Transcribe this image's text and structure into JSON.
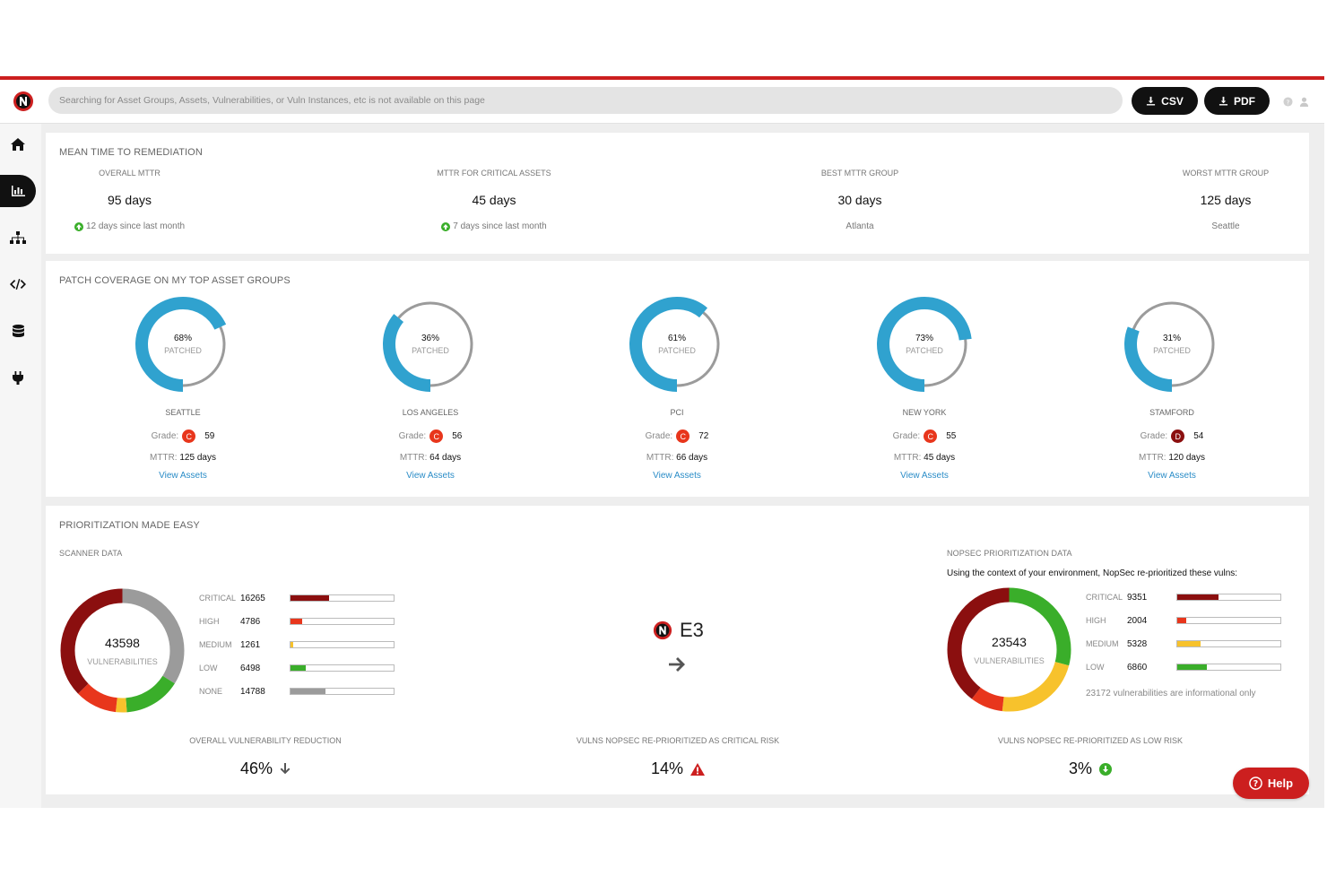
{
  "header": {
    "search_placeholder": "Searching for Asset Groups, Assets, Vulnerabilities, or Vuln Instances, etc is not available on this page",
    "csv_label": "CSV",
    "pdf_label": "PDF",
    "accent_color": "#cc1f1f"
  },
  "sidebar": {
    "items": [
      {
        "icon": "home-icon"
      },
      {
        "icon": "bar-chart-icon",
        "active": true
      },
      {
        "icon": "sitemap-icon"
      },
      {
        "icon": "code-icon"
      },
      {
        "icon": "database-icon"
      },
      {
        "icon": "plug-icon"
      }
    ]
  },
  "mttr": {
    "title": "MEAN TIME TO REMEDIATION",
    "metrics": [
      {
        "label": "OVERALL MTTR",
        "value": "95 days",
        "sub": "12 days since last month"
      },
      {
        "label": "MTTR FOR CRITICAL ASSETS",
        "value": "45 days",
        "sub": "7 days since last month"
      },
      {
        "label": "BEST MTTR GROUP",
        "value": "30 days",
        "link": "Atlanta"
      },
      {
        "label": "WORST MTTR GROUP",
        "value": "125 days",
        "link": "Seattle"
      }
    ]
  },
  "patch": {
    "title": "PATCH COVERAGE ON MY TOP ASSET GROUPS",
    "patched_label": "PATCHED",
    "grade_label": "Grade:",
    "mttr_label": "MTTR:",
    "view_assets_label": "View Assets",
    "groups": [
      {
        "pct_text": "68%",
        "pct": 68,
        "name": "SEATTLE",
        "grade": "C",
        "score": "59",
        "mttr": "125 days",
        "grade_color": "#e8361c"
      },
      {
        "pct_text": "36%",
        "pct": 36,
        "name": "LOS ANGELES",
        "grade": "C",
        "score": "56",
        "mttr": "64 days",
        "grade_color": "#e8361c"
      },
      {
        "pct_text": "61%",
        "pct": 61,
        "name": "PCI",
        "grade": "C",
        "score": "72",
        "mttr": "66 days",
        "grade_color": "#e8361c"
      },
      {
        "pct_text": "73%",
        "pct": 73,
        "name": "NEW YORK",
        "grade": "C",
        "score": "55",
        "mttr": "45 days",
        "grade_color": "#e8361c"
      },
      {
        "pct_text": "31%",
        "pct": 31,
        "name": "STAMFORD",
        "grade": "D",
        "score": "54",
        "mttr": "120 days",
        "grade_color": "#8b0f0f"
      }
    ]
  },
  "prio": {
    "title": "PRIORITIZATION MADE EASY",
    "scanner": {
      "title": "SCANNER DATA",
      "total": "43598",
      "total_label": "VULNERABILITIES",
      "rows": [
        {
          "label": "CRITICAL",
          "value": "16265",
          "fill": 0.37,
          "color": "#8b0f0f"
        },
        {
          "label": "HIGH",
          "value": "4786",
          "fill": 0.11,
          "color": "#e8361c"
        },
        {
          "label": "MEDIUM",
          "value": "1261",
          "fill": 0.03,
          "color": "#f7c22c"
        },
        {
          "label": "LOW",
          "value": "6498",
          "fill": 0.15,
          "color": "#3aae2a"
        },
        {
          "label": "NONE",
          "value": "14788",
          "fill": 0.34,
          "color": "#9b9b9b"
        }
      ]
    },
    "e3_label": "E3",
    "nopsec": {
      "title": "NOPSEC PRIORITIZATION DATA",
      "subtitle": "Using the context of your environment, NopSec re-prioritized these vulns:",
      "total": "23543",
      "total_label": "VULNERABILITIES",
      "rows": [
        {
          "label": "CRITICAL",
          "value": "9351",
          "fill": 0.4,
          "color": "#8b0f0f"
        },
        {
          "label": "HIGH",
          "value": "2004",
          "fill": 0.09,
          "color": "#e8361c"
        },
        {
          "label": "MEDIUM",
          "value": "5328",
          "fill": 0.23,
          "color": "#f7c22c"
        },
        {
          "label": "LOW",
          "value": "6860",
          "fill": 0.29,
          "color": "#3aae2a"
        }
      ],
      "note": "23172 vulnerabilities are informational only"
    },
    "stats": [
      {
        "label": "OVERALL VULNERABILITY REDUCTION",
        "value": "46%",
        "icon": "arrow-down-icon"
      },
      {
        "label": "VULNS NOPSEC RE-PRIORITIZED AS CRITICAL RISK",
        "value": "14%",
        "icon": "warning-icon"
      },
      {
        "label": "VULNS NOPSEC RE-PRIORITIZED AS LOW RISK",
        "value": "3%",
        "icon": "green-arrow-down-icon"
      }
    ]
  },
  "help_label": "Help"
}
